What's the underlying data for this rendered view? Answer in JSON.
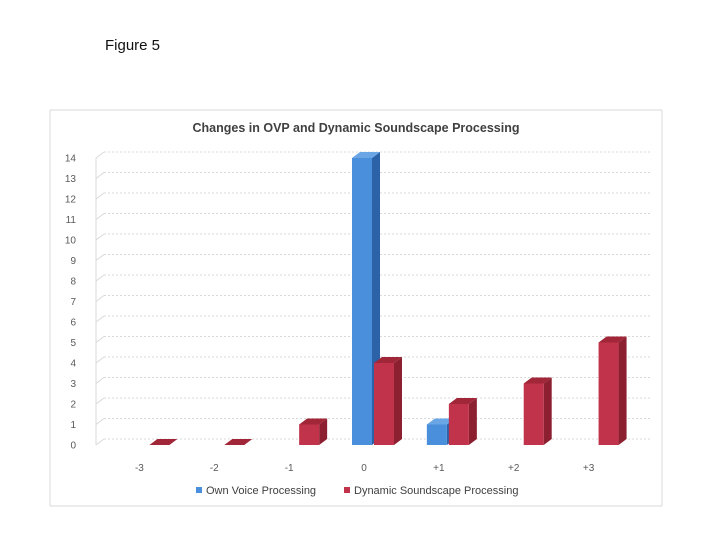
{
  "figure_label": "Figure 5",
  "colors": {
    "own_voice": "#4a8fdc",
    "own_voice_side": "#2b62a8",
    "own_voice_top": "#6aa6e6",
    "dynamic": "#c0334a",
    "dynamic_side": "#8c1f30",
    "dynamic_top": "#a02638",
    "grid": "#d9d9d9"
  },
  "chart_data": {
    "type": "bar",
    "title": "Changes in OVP and Dynamic Soundscape Processing",
    "categories": [
      "-3",
      "-2",
      "-1",
      "0",
      "+1",
      "+2",
      "+3"
    ],
    "series": [
      {
        "name": "Own Voice Processing",
        "values": [
          0,
          0,
          0,
          14,
          1,
          0,
          0
        ]
      },
      {
        "name": "Dynamic Soundscape Processing",
        "values": [
          0,
          0,
          1,
          4,
          2,
          3,
          5
        ]
      }
    ],
    "y_ticks": [
      "0",
      "1",
      "2",
      "3",
      "4",
      "5",
      "6",
      "7",
      "8",
      "9",
      "10",
      "11",
      "12",
      "13",
      "14"
    ],
    "ylim": [
      0,
      14
    ],
    "grid": true,
    "three_d": true,
    "legend_position": "bottom"
  }
}
